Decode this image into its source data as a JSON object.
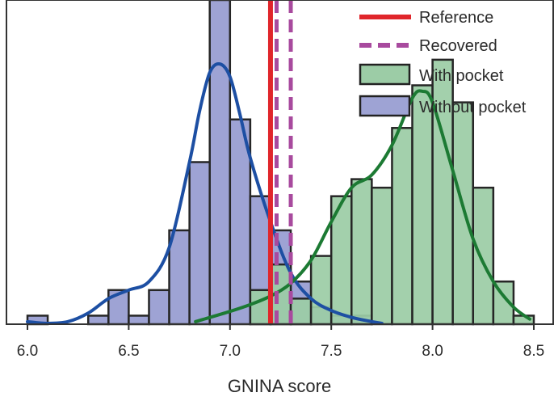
{
  "chart_data": {
    "type": "bar",
    "title": "",
    "xlabel": "GNINA score",
    "ylabel": "",
    "xlim": [
      6.0,
      8.5
    ],
    "ylim": [
      0,
      38
    ],
    "x_ticks": [
      "6.0",
      "6.5",
      "7.0",
      "7.5",
      "8.0",
      "8.5"
    ],
    "bin_width": 0.1,
    "grid": false,
    "legend_position": "top-right",
    "legend": [
      {
        "label": "Reference",
        "style": "solid-line",
        "color": "#e0262b"
      },
      {
        "label": "Recovered",
        "style": "dashed-line",
        "color": "#a84a9e"
      },
      {
        "label": "With pocket",
        "style": "patch",
        "color": "#9ccca6"
      },
      {
        "label": "Without pocket",
        "style": "patch",
        "color": "#9ea3d4"
      }
    ],
    "series": [
      {
        "name": "Without pocket",
        "color": "#9ea3d4",
        "kde_color": "#1d4fa3",
        "bins_start": [
          6.0,
          6.1,
          6.2,
          6.3,
          6.4,
          6.5,
          6.6,
          6.7,
          6.8,
          6.9,
          7.0,
          7.1,
          7.2,
          7.3,
          7.4,
          7.5,
          7.6,
          7.7
        ],
        "counts": [
          1,
          0,
          0,
          1,
          4,
          1,
          4,
          11,
          19,
          38,
          24,
          15,
          11,
          5,
          2,
          1,
          1,
          0
        ],
        "kde_x": [
          6.0,
          6.1,
          6.2,
          6.3,
          6.4,
          6.5,
          6.6,
          6.7,
          6.8,
          6.85,
          6.9,
          6.95,
          7.0,
          7.05,
          7.1,
          7.2,
          7.3,
          7.4,
          7.5,
          7.6,
          7.7,
          7.75
        ],
        "kde_y": [
          0.3,
          0.1,
          0.3,
          1.3,
          3.0,
          4.0,
          5.0,
          9.0,
          19.0,
          25.0,
          29.5,
          30.5,
          29.0,
          24.5,
          19.5,
          12.0,
          6.0,
          3.0,
          1.6,
          0.8,
          0.3,
          0.1
        ]
      },
      {
        "name": "With pocket",
        "color": "#9ccca6",
        "kde_color": "#1c7a33",
        "bins_start": [
          7.1,
          7.2,
          7.3,
          7.4,
          7.5,
          7.6,
          7.7,
          7.8,
          7.9,
          8.0,
          8.1,
          8.2,
          8.3,
          8.4
        ],
        "counts": [
          4,
          7,
          3,
          8,
          15,
          17,
          16,
          23,
          28,
          31,
          26,
          16,
          5,
          1
        ],
        "kde_x": [
          6.83,
          7.0,
          7.1,
          7.2,
          7.3,
          7.4,
          7.5,
          7.6,
          7.7,
          7.8,
          7.9,
          7.95,
          8.0,
          8.1,
          8.2,
          8.3,
          8.4,
          8.48
        ],
        "kde_y": [
          0.3,
          1.5,
          2.3,
          3.3,
          4.8,
          7.5,
          12.0,
          16.0,
          17.5,
          21.0,
          26.5,
          27.3,
          26.0,
          18.0,
          10.0,
          5.0,
          2.0,
          0.6
        ]
      }
    ],
    "vertical_lines": [
      {
        "name": "Reference",
        "x": 7.2,
        "style": "solid",
        "color": "#e0262b"
      },
      {
        "name": "Recovered",
        "x": [
          7.23,
          7.3
        ],
        "style": "dashed",
        "color": "#a84a9e"
      }
    ]
  }
}
